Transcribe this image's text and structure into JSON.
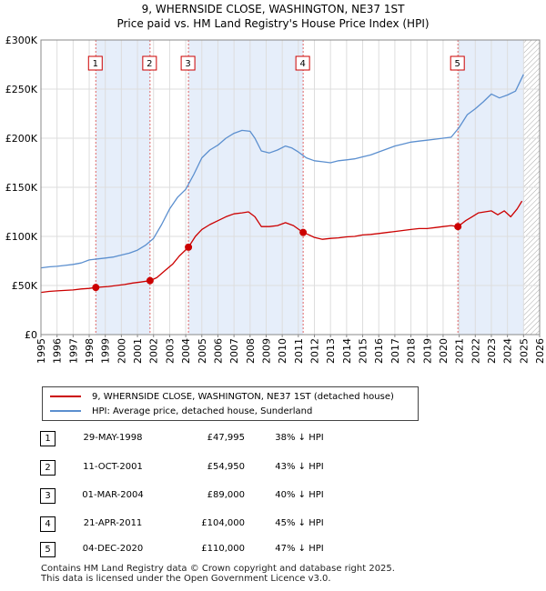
{
  "title_line1": "9, WHERNSIDE CLOSE, WASHINGTON, NE37 1ST",
  "title_line2": "Price paid vs. HM Land Registry's House Price Index (HPI)",
  "chart_data": {
    "type": "line",
    "ylim": [
      0,
      300000
    ],
    "xlim": [
      1995,
      2026
    ],
    "y_ticks": [
      0,
      50000,
      100000,
      150000,
      200000,
      250000,
      300000
    ],
    "y_tick_labels": [
      "£0",
      "£50K",
      "£100K",
      "£150K",
      "£200K",
      "£250K",
      "£300K"
    ],
    "x_ticks": [
      "1995",
      "1996",
      "1997",
      "1998",
      "1999",
      "2000",
      "2001",
      "2002",
      "2003",
      "2004",
      "2005",
      "2006",
      "2007",
      "2008",
      "2009",
      "2010",
      "2011",
      "2012",
      "2013",
      "2014",
      "2015",
      "2016",
      "2017",
      "2018",
      "2019",
      "2020",
      "2021",
      "2022",
      "2023",
      "2024",
      "2025",
      "2026"
    ],
    "grid": true,
    "legend_position": "bottom",
    "colors": {
      "property": "#cc0000",
      "hpi": "#5b8fcf",
      "shade": "#e6eefa",
      "vline": "#e06666"
    },
    "series": [
      {
        "name": "9, WHERNSIDE CLOSE, WASHINGTON, NE37 1ST (detached house)",
        "x": [
          1995.0,
          1995.5,
          1996.0,
          1996.5,
          1997.0,
          1997.5,
          1998.0,
          1998.41,
          1998.8,
          1999.2,
          1999.7,
          2000.2,
          2000.7,
          2001.2,
          2001.78,
          2002.2,
          2002.7,
          2003.2,
          2003.6,
          2004.17,
          2004.6,
          2005.0,
          2005.5,
          2006.0,
          2006.5,
          2007.0,
          2007.5,
          2007.9,
          2008.3,
          2008.7,
          2009.2,
          2009.7,
          2010.2,
          2010.7,
          2011.3,
          2011.6,
          2012.0,
          2012.5,
          2013.0,
          2013.5,
          2014.0,
          2014.5,
          2015.0,
          2015.5,
          2016.0,
          2016.5,
          2017.0,
          2017.5,
          2018.0,
          2018.5,
          2019.0,
          2019.5,
          2020.0,
          2020.5,
          2020.92,
          2021.4,
          2021.8,
          2022.2,
          2022.6,
          2023.0,
          2023.4,
          2023.8,
          2024.2,
          2024.6,
          2024.9
        ],
        "y": [
          43000,
          44000,
          44500,
          45000,
          45500,
          46500,
          47000,
          47995,
          48500,
          49000,
          50000,
          51000,
          52500,
          53500,
          54950,
          58000,
          65000,
          72000,
          80000,
          89000,
          100000,
          107000,
          112000,
          116000,
          120000,
          123000,
          124000,
          125000,
          120000,
          110000,
          110000,
          111000,
          114000,
          111000,
          104000,
          102000,
          99000,
          97000,
          98000,
          98500,
          99500,
          100000,
          101500,
          102000,
          103000,
          104000,
          105000,
          106000,
          107000,
          108000,
          108000,
          109000,
          110000,
          111000,
          110000,
          116000,
          120000,
          124000,
          125000,
          126000,
          122000,
          126000,
          120000,
          128000,
          136000
        ]
      },
      {
        "name": "HPI: Average price, detached house, Sunderland",
        "x": [
          1995.0,
          1995.5,
          1996.0,
          1996.5,
          1997.0,
          1997.5,
          1998.0,
          1998.5,
          1999.0,
          1999.5,
          2000.0,
          2000.5,
          2001.0,
          2001.5,
          2002.0,
          2002.5,
          2003.0,
          2003.5,
          2004.0,
          2004.5,
          2005.0,
          2005.5,
          2006.0,
          2006.5,
          2007.0,
          2007.5,
          2008.0,
          2008.3,
          2008.7,
          2009.2,
          2009.7,
          2010.2,
          2010.6,
          2011.0,
          2011.5,
          2012.0,
          2012.5,
          2013.0,
          2013.5,
          2014.0,
          2014.5,
          2015.0,
          2015.5,
          2016.0,
          2016.5,
          2017.0,
          2017.5,
          2018.0,
          2018.5,
          2019.0,
          2019.5,
          2020.0,
          2020.5,
          2021.0,
          2021.5,
          2022.0,
          2022.5,
          2023.0,
          2023.5,
          2024.0,
          2024.5,
          2025.0
        ],
        "y": [
          68000,
          69000,
          69500,
          70500,
          71500,
          73000,
          76000,
          77000,
          78000,
          79000,
          81000,
          83000,
          86000,
          91000,
          98000,
          112000,
          128000,
          140000,
          148000,
          163000,
          180000,
          188000,
          193000,
          200000,
          205000,
          208000,
          207000,
          200000,
          187000,
          185000,
          188000,
          192000,
          190000,
          186000,
          180000,
          177000,
          176000,
          175000,
          177000,
          178000,
          179000,
          181000,
          183000,
          186000,
          189000,
          192000,
          194000,
          196000,
          197000,
          198000,
          199000,
          200000,
          201000,
          211000,
          224000,
          230000,
          237000,
          245000,
          241000,
          244000,
          248000,
          265000
        ]
      }
    ],
    "transactions": [
      {
        "label": "1",
        "x": 1998.41,
        "y": 47995
      },
      {
        "label": "2",
        "x": 2001.78,
        "y": 54950
      },
      {
        "label": "3",
        "x": 2004.17,
        "y": 89000
      },
      {
        "label": "4",
        "x": 2011.3,
        "y": 104000
      },
      {
        "label": "5",
        "x": 2020.92,
        "y": 110000
      }
    ],
    "shaded_spans": [
      [
        1998.41,
        2001.78
      ],
      [
        2004.17,
        2011.3
      ],
      [
        2020.92,
        2025.0
      ]
    ],
    "hatch_from": 2025.0
  },
  "legend": {
    "property_label": "9, WHERNSIDE CLOSE, WASHINGTON, NE37 1ST (detached house)",
    "hpi_label": "HPI: Average price, detached house, Sunderland"
  },
  "table": [
    {
      "num": "1",
      "date": "29-MAY-1998",
      "price": "£47,995",
      "hpi": "38% ↓ HPI"
    },
    {
      "num": "2",
      "date": "11-OCT-2001",
      "price": "£54,950",
      "hpi": "43% ↓ HPI"
    },
    {
      "num": "3",
      "date": "01-MAR-2004",
      "price": "£89,000",
      "hpi": "40% ↓ HPI"
    },
    {
      "num": "4",
      "date": "21-APR-2011",
      "price": "£104,000",
      "hpi": "45% ↓ HPI"
    },
    {
      "num": "5",
      "date": "04-DEC-2020",
      "price": "£110,000",
      "hpi": "47% ↓ HPI"
    }
  ],
  "footer_line1": "Contains HM Land Registry data © Crown copyright and database right 2025.",
  "footer_line2": "This data is licensed under the Open Government Licence v3.0."
}
